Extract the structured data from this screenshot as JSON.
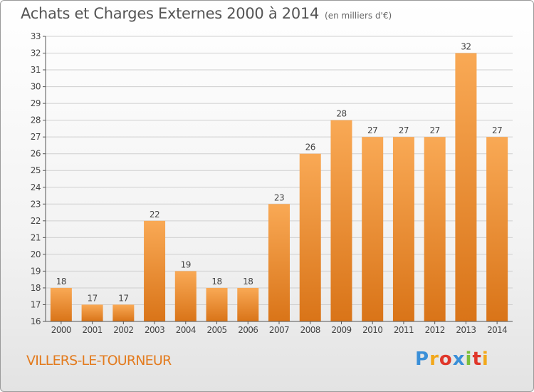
{
  "header": {
    "title": "Achats et Charges Externes 2000 à 2014",
    "unit": "(en milliers d'€)"
  },
  "footer": {
    "commune": "VILLERS-LE-TOURNEUR",
    "brand_letters": [
      "P",
      "r",
      "o",
      "x",
      "i",
      "t",
      "i"
    ],
    "brand_colors": [
      "#3a8fd8",
      "#f2a81b",
      "#e0372b",
      "#3a8fd8",
      "#7bbf3a",
      "#e0372b",
      "#f2a81b"
    ]
  },
  "colors": {
    "bar_top": "#f9a955",
    "bar_bottom": "#d97418",
    "axis": "#555555",
    "grid": "#cfcfcf"
  },
  "chart_data": {
    "type": "bar",
    "categories": [
      "2000",
      "2001",
      "2002",
      "2003",
      "2004",
      "2005",
      "2006",
      "2007",
      "2008",
      "2009",
      "2010",
      "2011",
      "2012",
      "2013",
      "2014"
    ],
    "values": [
      18,
      17,
      17,
      22,
      19,
      18,
      18,
      23,
      26,
      28,
      27,
      27,
      27,
      32,
      27
    ],
    "ylim": [
      16,
      33
    ],
    "yticks": [
      16,
      17,
      18,
      19,
      20,
      21,
      22,
      23,
      24,
      25,
      26,
      27,
      28,
      29,
      30,
      31,
      32,
      33
    ],
    "grid": true,
    "title": "Achats et Charges Externes 2000 à 2014",
    "ylabel": "(en milliers d'€)",
    "xlabel": ""
  }
}
